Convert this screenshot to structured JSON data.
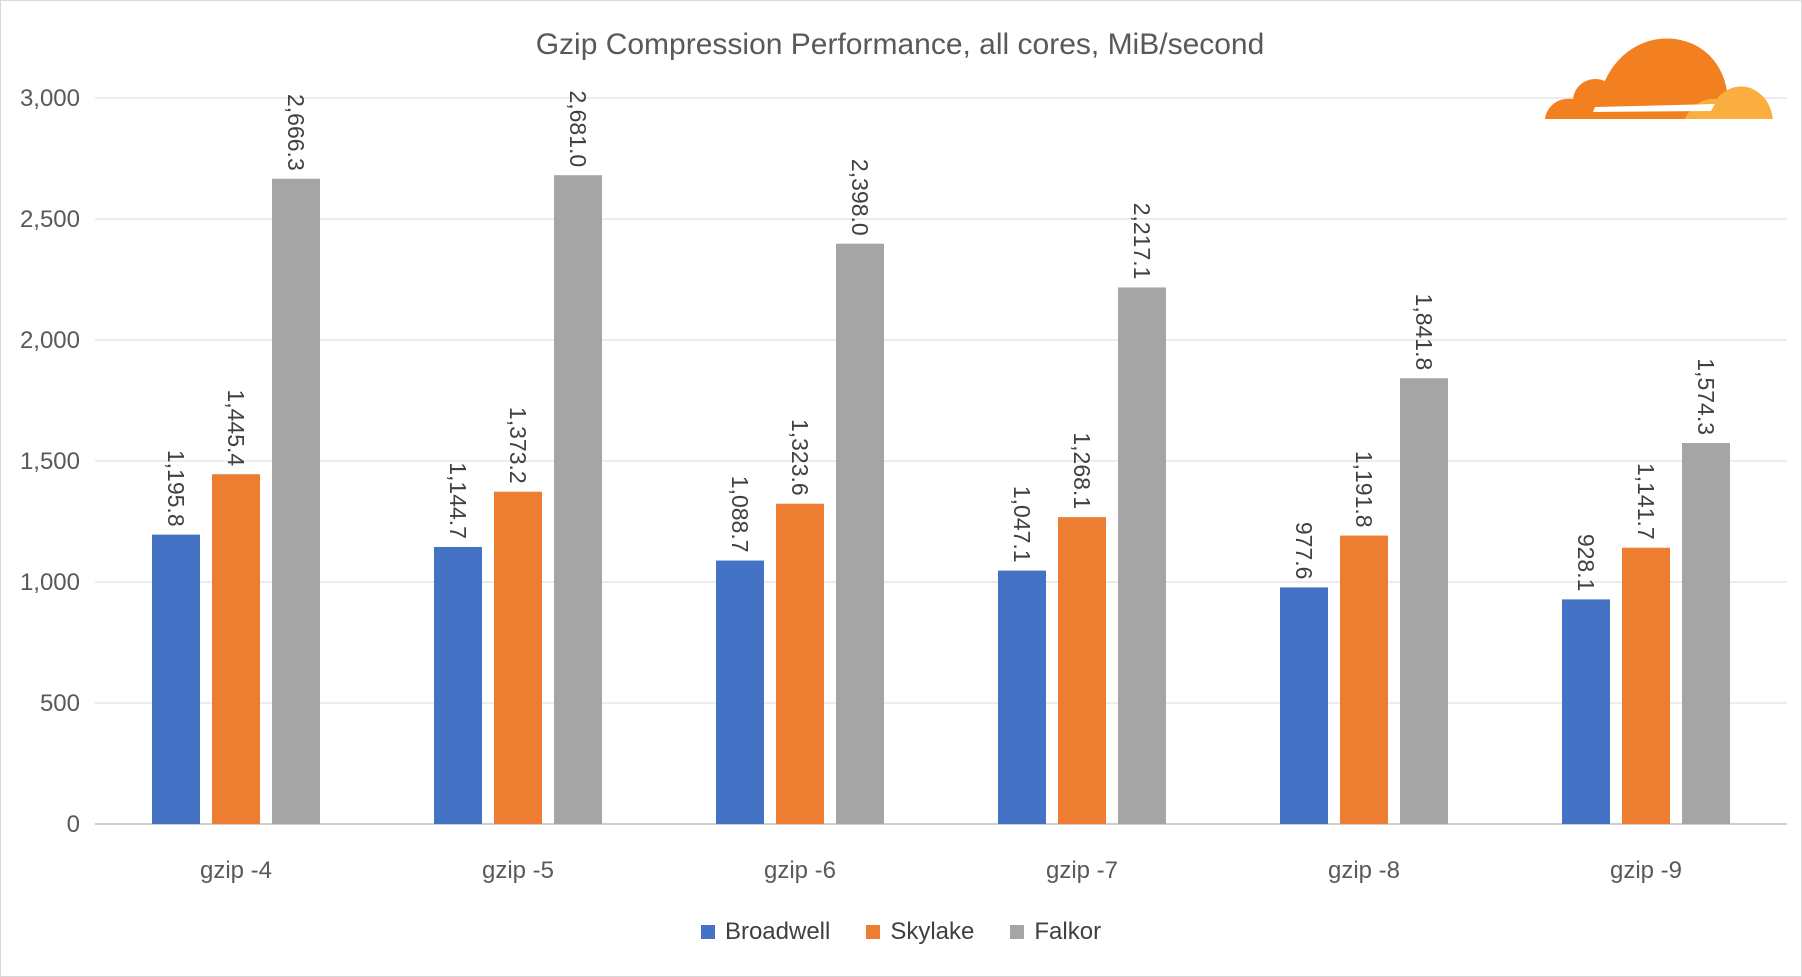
{
  "chart_data": {
    "type": "bar",
    "title": "Gzip Compression Performance, all cores, MiB/second",
    "categories": [
      "gzip -4",
      "gzip -5",
      "gzip -6",
      "gzip -7",
      "gzip -8",
      "gzip -9"
    ],
    "series": [
      {
        "name": "Broadwell",
        "color": "#4472C4",
        "values": [
          1195.8,
          1144.7,
          1088.7,
          1047.1,
          977.6,
          928.1
        ],
        "labels": [
          "1,195.8",
          "1,144.7",
          "1,088.7",
          "1,047.1",
          "977.6",
          "928.1"
        ]
      },
      {
        "name": "Skylake",
        "color": "#ED7D31",
        "values": [
          1445.4,
          1373.2,
          1323.6,
          1268.1,
          1191.8,
          1141.7
        ],
        "labels": [
          "1,445.4",
          "1,373.2",
          "1,323.6",
          "1,268.1",
          "1,191.8",
          "1,141.7"
        ]
      },
      {
        "name": "Falkor",
        "color": "#A5A5A5",
        "values": [
          2666.3,
          2681.0,
          2398.0,
          2217.1,
          1841.8,
          1574.3
        ],
        "labels": [
          "2,666.3",
          "2,681.0",
          "2,398.0",
          "2,217.1",
          "1,841.8",
          "1,574.3"
        ]
      }
    ],
    "ylim": [
      0,
      3000
    ],
    "yticks": [
      0,
      500,
      1000,
      1500,
      2000,
      2500,
      3000
    ],
    "ytick_labels": [
      "0",
      "500",
      "1,000",
      "1,500",
      "2,000",
      "2,500",
      "3,000"
    ],
    "grid": true,
    "legend_position": "bottom"
  },
  "logo": {
    "name": "cloudflare-logo",
    "colors": [
      "#F38020",
      "#FAAE40"
    ]
  }
}
